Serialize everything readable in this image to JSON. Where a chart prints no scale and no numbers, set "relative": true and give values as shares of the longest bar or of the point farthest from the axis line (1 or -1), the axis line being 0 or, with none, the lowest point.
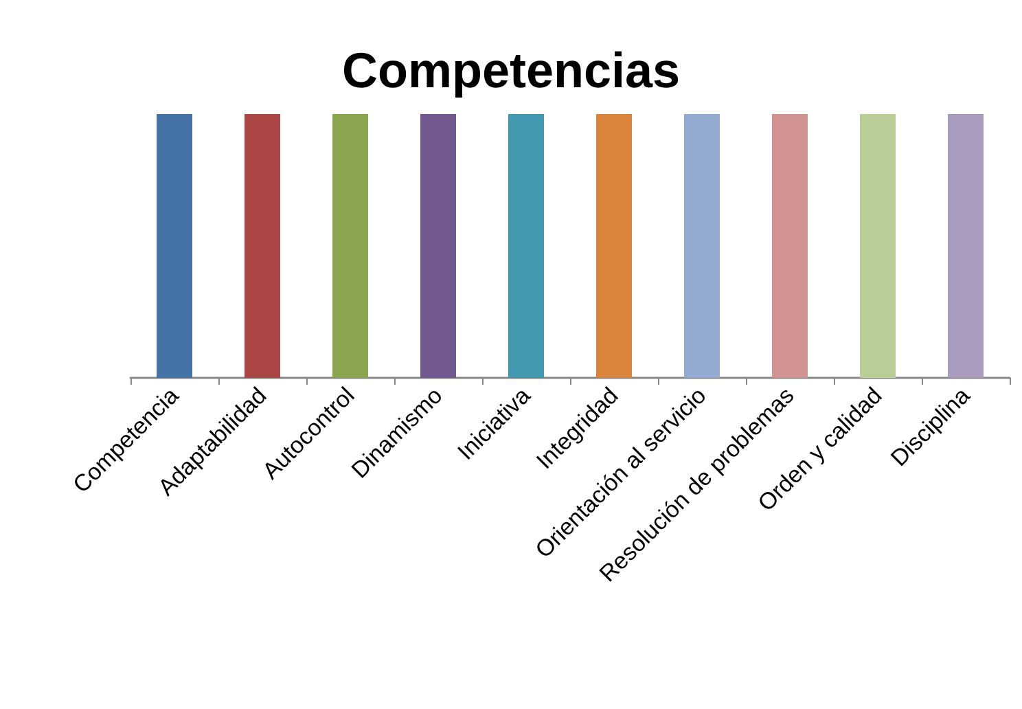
{
  "chart_data": {
    "type": "bar",
    "title": "Competencias",
    "categories": [
      "Competencia",
      "Adaptabilidad",
      "Autocontrol",
      "Dinamismo",
      "Iniciativa",
      "Integridad",
      "Orientación al servicio",
      "Resolución de problemas",
      "Orden y calidad",
      "Disciplina"
    ],
    "values": [
      1,
      1,
      1,
      1,
      1,
      1,
      1,
      1,
      1,
      1
    ],
    "colors": [
      "#4572a7",
      "#aa4643",
      "#89a54e",
      "#71588f",
      "#4198af",
      "#db843d",
      "#93a9cf",
      "#d19392",
      "#b9cd96",
      "#a99bbd"
    ],
    "relative": true
  }
}
